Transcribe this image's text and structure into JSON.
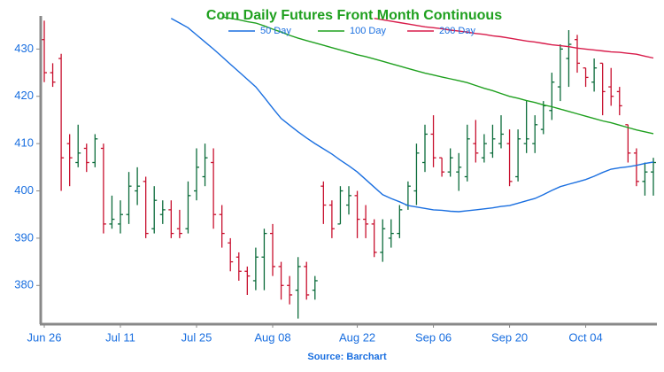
{
  "chart_data": {
    "type": "ohlc",
    "title": "Corn Daily Futures Front Month Continuous",
    "source": "Source: Barchart",
    "categories": [
      "Jun 26",
      null,
      null,
      null,
      null,
      null,
      null,
      null,
      null,
      "Jul 11",
      null,
      null,
      null,
      null,
      null,
      null,
      null,
      null,
      "Jul 25",
      null,
      null,
      null,
      null,
      null,
      null,
      null,
      null,
      "Aug 08",
      null,
      null,
      null,
      null,
      null,
      null,
      null,
      null,
      null,
      "Aug 22",
      null,
      null,
      null,
      null,
      null,
      null,
      null,
      null,
      "Sep 06",
      null,
      null,
      null,
      null,
      null,
      null,
      null,
      null,
      "Sep 20",
      null,
      null,
      null,
      null,
      null,
      null,
      null,
      null,
      "Oct 04",
      null,
      null,
      null,
      null,
      null,
      null,
      null,
      null
    ],
    "open": [
      432,
      425,
      428,
      410,
      406,
      409,
      406,
      409,
      393,
      393,
      395,
      400,
      402,
      392,
      395,
      396,
      392,
      392,
      400,
      403,
      406,
      395,
      389,
      386,
      383,
      381,
      386,
      391,
      384,
      380,
      379,
      384,
      379,
      401,
      397,
      393,
      397,
      399,
      394,
      393,
      387,
      390,
      391,
      397,
      400,
      406,
      412,
      407,
      404,
      404,
      403,
      410,
      407,
      408,
      410,
      410,
      403,
      410,
      410,
      413,
      417,
      422,
      428,
      432,
      426,
      423,
      427,
      422,
      421,
      414,
      408,
      402,
      404
    ],
    "high": [
      436,
      427,
      429,
      412,
      414,
      410,
      412,
      410,
      399,
      398,
      404,
      405,
      403,
      401,
      398,
      398,
      396,
      402,
      409,
      410,
      409,
      397,
      390,
      387,
      384,
      388,
      392,
      393,
      385,
      382,
      386,
      385,
      382,
      402,
      398,
      401,
      401,
      400,
      397,
      394,
      394,
      394,
      397,
      402,
      410,
      414,
      416,
      407,
      409,
      408,
      414,
      415,
      412,
      414,
      416,
      413,
      413,
      419,
      416,
      419,
      425,
      431,
      434,
      433,
      426,
      428,
      427,
      426,
      422,
      414,
      409,
      406,
      407
    ],
    "low": [
      423,
      422,
      400,
      401,
      405,
      404,
      405,
      391,
      392,
      391,
      393,
      397,
      390,
      391,
      393,
      390,
      390,
      391,
      398,
      401,
      392,
      388,
      383,
      381,
      378,
      379,
      379,
      382,
      377,
      376,
      373,
      377,
      377,
      393,
      390,
      393,
      395,
      390,
      390,
      386,
      385,
      388,
      390,
      396,
      397,
      404,
      405,
      403,
      403,
      400,
      402,
      406,
      406,
      407,
      409,
      401,
      402,
      408,
      408,
      412,
      415,
      419,
      422,
      425,
      422,
      421,
      416,
      418,
      416,
      406,
      401,
      399,
      399
    ],
    "close": [
      425,
      423,
      407,
      407,
      408,
      406,
      411,
      393,
      394,
      395,
      401,
      401,
      391,
      398,
      396,
      391,
      391,
      399,
      405,
      407,
      395,
      391,
      385,
      383,
      382,
      386,
      391,
      384,
      380,
      378,
      384,
      378,
      381,
      397,
      392,
      400,
      399,
      394,
      393,
      387,
      392,
      391,
      396,
      401,
      408,
      412,
      407,
      404,
      407,
      405,
      411,
      408,
      410,
      411,
      412,
      402,
      411,
      411,
      414,
      418,
      423,
      430,
      431,
      427,
      424,
      426,
      421,
      420,
      418,
      408,
      402,
      404,
      406
    ],
    "up_color": "#0b6b3a",
    "down_color": "#c8102e",
    "series": [
      {
        "name": "50 Day",
        "color": "#1a6fe0",
        "values": [
          null,
          null,
          null,
          null,
          null,
          null,
          null,
          null,
          null,
          null,
          null,
          null,
          null,
          null,
          null,
          436.5,
          435.5,
          434.5,
          433,
          431.5,
          430,
          428.4,
          426.8,
          425.2,
          423.6,
          422,
          419.8,
          417.5,
          415.3,
          413.9,
          412.5,
          411.2,
          410,
          408.9,
          407.8,
          406.5,
          405.3,
          404,
          402.4,
          400.8,
          399.2,
          398.4,
          397.7,
          396.9,
          396.6,
          396.3,
          396,
          395.9,
          395.7,
          395.6,
          395.8,
          396,
          396.2,
          396.4,
          396.7,
          396.9,
          397.4,
          397.9,
          398.4,
          399.2,
          400.1,
          400.9,
          401.4,
          401.9,
          402.4,
          403.1,
          403.9,
          404.6,
          404.9,
          405.1,
          405.4,
          405.8,
          406.1
        ]
      },
      {
        "name": "100 Day",
        "color": "#1fa01f",
        "values": [
          null,
          null,
          null,
          null,
          null,
          null,
          null,
          null,
          null,
          null,
          null,
          null,
          null,
          null,
          null,
          null,
          null,
          null,
          null,
          null,
          null,
          436.8,
          436.5,
          436.2,
          435.8,
          435.5,
          434.9,
          434.2,
          433.6,
          432.9,
          432.3,
          431.8,
          431.3,
          430.8,
          430.3,
          429.8,
          429.3,
          428.8,
          428.4,
          427.9,
          427.4,
          426.9,
          426.4,
          425.9,
          425.4,
          424.9,
          424.5,
          424.1,
          423.7,
          423.3,
          422.9,
          422.3,
          421.7,
          421.2,
          420.6,
          420,
          419.6,
          419.1,
          418.7,
          418.2,
          417.8,
          417.3,
          416.8,
          416.3,
          415.8,
          415.3,
          414.8,
          414.4,
          413.9,
          413.4,
          412.9,
          412.5,
          412.1
        ]
      },
      {
        "name": "200 Day",
        "color": "#d81b4a",
        "values": [
          null,
          null,
          null,
          null,
          null,
          null,
          null,
          null,
          null,
          null,
          null,
          null,
          null,
          null,
          null,
          null,
          null,
          null,
          null,
          null,
          null,
          null,
          null,
          null,
          null,
          null,
          null,
          null,
          null,
          null,
          null,
          null,
          null,
          null,
          null,
          null,
          null,
          null,
          null,
          436.5,
          436.2,
          435.9,
          435.6,
          435.3,
          435,
          434.7,
          434.5,
          434.3,
          434,
          433.8,
          433.6,
          433.3,
          433.1,
          432.8,
          432.6,
          432.3,
          432,
          431.7,
          431.5,
          431.2,
          430.9,
          430.7,
          430.5,
          430.2,
          430,
          429.8,
          429.6,
          429.4,
          429.3,
          429.1,
          428.9,
          428.5,
          428.1
        ]
      }
    ],
    "ylim": [
      372,
      437
    ],
    "yticks": [
      380,
      390,
      400,
      410,
      420,
      430
    ]
  }
}
